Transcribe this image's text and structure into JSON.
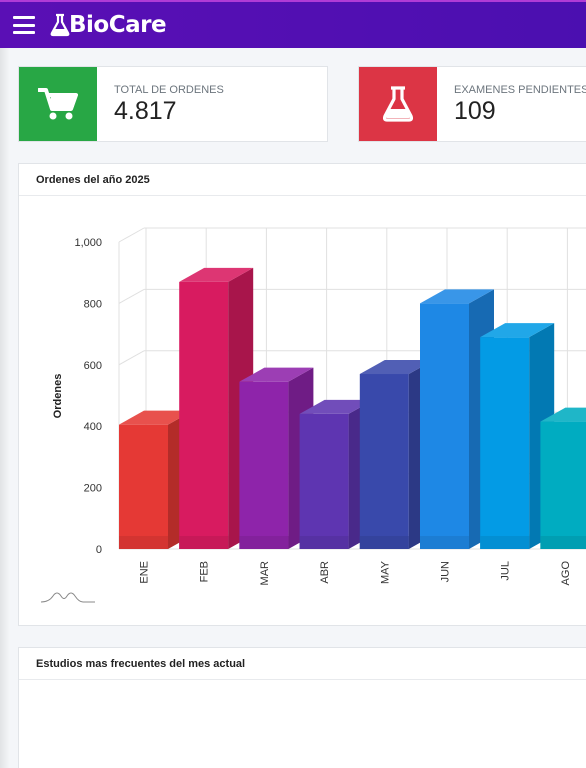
{
  "navbar": {
    "menu_icon": "hamburger-icon",
    "brand_icon": "flask-icon",
    "brand_name": "BioCare",
    "colors": {
      "bar": "#4f0fb3",
      "accent_line": "#b03bd6"
    }
  },
  "stats": [
    {
      "label": "TOTAL DE ORDENES",
      "value": "4.817",
      "icon": "cart-icon",
      "color": "#28a745"
    },
    {
      "label": "EXAMENES PENDIENTES",
      "value": "109",
      "icon": "flask-icon",
      "color": "#dc3545"
    }
  ],
  "orders_card": {
    "title": "Ordenes del año 2025"
  },
  "studies_card": {
    "title": "Estudios mas frecuentes del mes actual"
  },
  "chart_data": {
    "type": "bar",
    "ylabel": "Ordenes",
    "xlabel": "",
    "ylim": [
      0,
      1000
    ],
    "y_ticks": [
      "0",
      "200",
      "400",
      "600",
      "800",
      "1,000"
    ],
    "categories": [
      "ENE",
      "FEB",
      "MAR",
      "ABR",
      "MAY",
      "JUN",
      "JUL",
      "AGO"
    ],
    "values": [
      405,
      870,
      545,
      440,
      570,
      800,
      690,
      415
    ],
    "colors": [
      "#e53935",
      "#d81b60",
      "#8e24aa",
      "#5e35b1",
      "#3949ab",
      "#1e88e5",
      "#039be5",
      "#00acc1"
    ],
    "grid": true,
    "style": "3d"
  }
}
